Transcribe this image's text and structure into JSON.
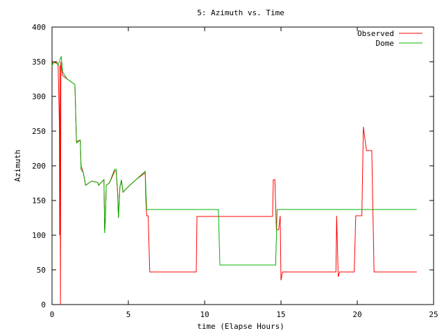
{
  "chart_data": {
    "type": "line",
    "title": "5: Azimuth vs. Time",
    "xlabel": "time (Elapse Hours)",
    "ylabel": "Azimuth",
    "xlim": [
      0,
      25
    ],
    "ylim": [
      0,
      400
    ],
    "xticks": [
      0,
      5,
      10,
      15,
      20,
      25
    ],
    "yticks": [
      0,
      50,
      100,
      150,
      200,
      250,
      300,
      350,
      400
    ],
    "grid": false,
    "legend_position": "top-right",
    "series": [
      {
        "name": "Observed",
        "color": "#ff0000",
        "points": [
          [
            0,
            345
          ],
          [
            0.1,
            350
          ],
          [
            0.2,
            348
          ],
          [
            0.3,
            350
          ],
          [
            0.4,
            345
          ],
          [
            0.48,
            260
          ],
          [
            0.5,
            100
          ],
          [
            0.52,
            345
          ],
          [
            0.55,
            0
          ],
          [
            0.58,
            350
          ],
          [
            0.62,
            340
          ],
          [
            0.7,
            330
          ],
          [
            1.0,
            325
          ],
          [
            1.45,
            318
          ],
          [
            1.5,
            317
          ],
          [
            1.6,
            235
          ],
          [
            1.85,
            237
          ],
          [
            1.9,
            200
          ],
          [
            2.05,
            190
          ],
          [
            2.2,
            172
          ],
          [
            2.6,
            178
          ],
          [
            3.0,
            176
          ],
          [
            3.05,
            172
          ],
          [
            3.4,
            180
          ],
          [
            3.45,
            105
          ],
          [
            3.5,
            125
          ],
          [
            3.55,
            172
          ],
          [
            3.75,
            175
          ],
          [
            4.1,
            192
          ],
          [
            4.2,
            193
          ],
          [
            4.3,
            160
          ],
          [
            4.35,
            125
          ],
          [
            4.45,
            170
          ],
          [
            4.55,
            178
          ],
          [
            4.65,
            162
          ],
          [
            5.0,
            170
          ],
          [
            5.5,
            180
          ],
          [
            6.1,
            190
          ],
          [
            6.15,
            150
          ],
          [
            6.2,
            128
          ],
          [
            6.3,
            128
          ],
          [
            6.4,
            47
          ],
          [
            9.45,
            47
          ],
          [
            9.5,
            127
          ],
          [
            14.45,
            127
          ],
          [
            14.5,
            180
          ],
          [
            14.6,
            180
          ],
          [
            14.7,
            108
          ],
          [
            14.85,
            108
          ],
          [
            14.95,
            128
          ],
          [
            15.0,
            35
          ],
          [
            15.1,
            47
          ],
          [
            18.6,
            47
          ],
          [
            18.65,
            128
          ],
          [
            18.75,
            40
          ],
          [
            18.85,
            47
          ],
          [
            19.8,
            47
          ],
          [
            19.9,
            128
          ],
          [
            20.3,
            128
          ],
          [
            20.4,
            256
          ],
          [
            20.6,
            222
          ],
          [
            20.95,
            222
          ],
          [
            21.1,
            47
          ],
          [
            23.9,
            47
          ]
        ]
      },
      {
        "name": "Dome",
        "color": "#00b000",
        "points": [
          [
            0,
            343
          ],
          [
            0.1,
            350
          ],
          [
            0.3,
            348
          ],
          [
            0.4,
            345
          ],
          [
            0.6,
            358
          ],
          [
            0.7,
            335
          ],
          [
            1.0,
            325
          ],
          [
            1.45,
            318
          ],
          [
            1.5,
            317
          ],
          [
            1.6,
            233
          ],
          [
            1.85,
            237
          ],
          [
            1.9,
            195
          ],
          [
            2.05,
            190
          ],
          [
            2.2,
            172
          ],
          [
            2.6,
            178
          ],
          [
            3.0,
            176
          ],
          [
            3.05,
            172
          ],
          [
            3.4,
            180
          ],
          [
            3.45,
            103
          ],
          [
            3.5,
            125
          ],
          [
            3.55,
            172
          ],
          [
            3.75,
            175
          ],
          [
            4.1,
            195
          ],
          [
            4.2,
            195
          ],
          [
            4.3,
            162
          ],
          [
            4.35,
            125
          ],
          [
            4.45,
            170
          ],
          [
            4.55,
            180
          ],
          [
            4.65,
            162
          ],
          [
            5.0,
            170
          ],
          [
            5.5,
            180
          ],
          [
            6.1,
            192
          ],
          [
            6.2,
            137
          ],
          [
            10.9,
            137
          ],
          [
            11.0,
            57
          ],
          [
            14.65,
            57
          ],
          [
            14.75,
            137
          ],
          [
            23.9,
            137
          ]
        ]
      }
    ]
  }
}
